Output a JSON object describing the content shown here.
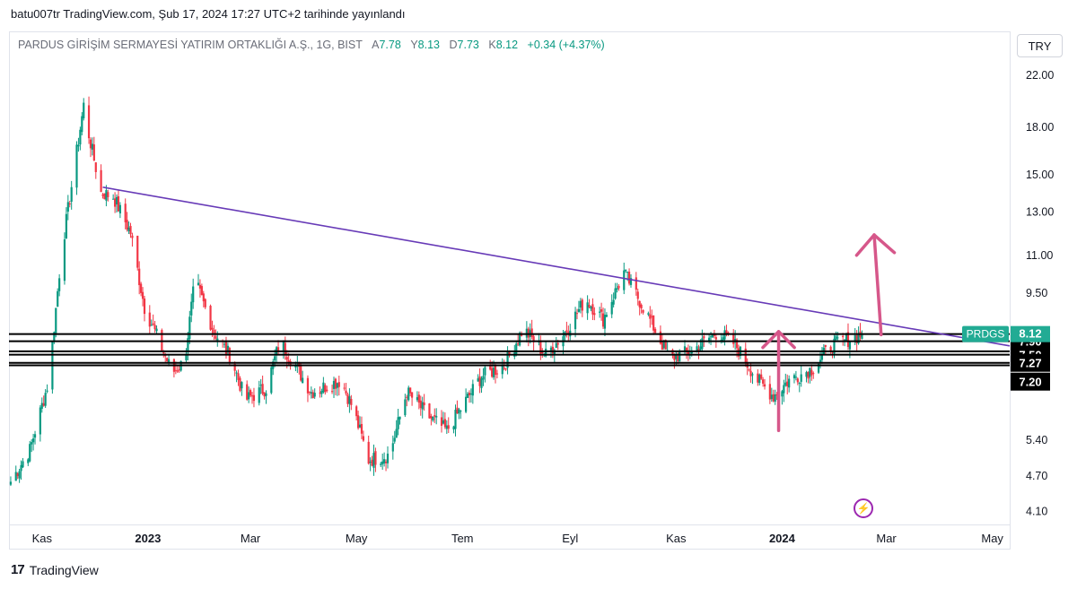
{
  "caption": "batu007tr TradingView.com, Şub 17, 2024 17:27 UTC+2 tarihinde yayınlandı",
  "symbol": {
    "name": "PARDUS GİRİŞİM SERMAYESİ YATIRIM ORTAKLIĞI A.Ş., 1G, BIST",
    "open_label": "A",
    "open": "7.78",
    "high_label": "Y",
    "high": "8.13",
    "low_label": "D",
    "low": "7.73",
    "close_label": "K",
    "close": "8.12",
    "change": "+0.34 (+4.37%)"
  },
  "currency": "TRY",
  "footer": {
    "logo_mark": "17",
    "logo_text": "TradingView"
  },
  "flash_icon": "lightning-icon",
  "colors": {
    "up": "#089981",
    "down": "#f23645",
    "trendline": "#673ab7",
    "arrow": "#d6578a",
    "level": "#000000",
    "price_tag": "#22ab94"
  },
  "chart_data": {
    "type": "candlestick",
    "y_scale": "log",
    "ylim": [
      3.9,
      23.5
    ],
    "y_ticks": [
      22.0,
      18.0,
      15.0,
      13.0,
      11.0,
      9.5,
      5.4,
      4.7,
      4.1
    ],
    "y_tick_labels": [
      "22.00",
      "18.00",
      "15.00",
      "13.00",
      "11.00",
      "9.50",
      "5.40",
      "4.70",
      "4.10"
    ],
    "x_ticks": [
      {
        "label": "Kas",
        "date": "2022-11-01",
        "bold": false
      },
      {
        "label": "2023",
        "date": "2023-01-01",
        "bold": true
      },
      {
        "label": "Mar",
        "date": "2023-03-01",
        "bold": false
      },
      {
        "label": "May",
        "date": "2023-05-01",
        "bold": false
      },
      {
        "label": "Tem",
        "date": "2023-07-01",
        "bold": false
      },
      {
        "label": "Eyl",
        "date": "2023-09-01",
        "bold": false
      },
      {
        "label": "Kas",
        "date": "2023-11-01",
        "bold": false
      },
      {
        "label": "2024",
        "date": "2024-01-01",
        "bold": true
      },
      {
        "label": "Mar",
        "date": "2024-03-01",
        "bold": false
      },
      {
        "label": "May",
        "date": "2024-05-01",
        "bold": false
      }
    ],
    "x_range": [
      "2022-10-13",
      "2024-05-11"
    ],
    "close_path": [
      [
        "2022-10-14",
        4.6
      ],
      [
        "2022-10-25",
        5.2
      ],
      [
        "2022-11-05",
        6.8
      ],
      [
        "2022-11-12",
        11.0
      ],
      [
        "2022-11-19",
        15.0
      ],
      [
        "2022-11-25",
        19.6
      ],
      [
        "2022-11-28",
        17.5
      ],
      [
        "2022-12-05",
        14.0
      ],
      [
        "2022-12-12",
        13.8
      ],
      [
        "2022-12-22",
        12.0
      ],
      [
        "2022-12-30",
        9.0
      ],
      [
        "2023-01-05",
        8.2
      ],
      [
        "2023-01-15",
        7.0
      ],
      [
        "2023-01-22",
        7.3
      ],
      [
        "2023-01-28",
        10.0
      ],
      [
        "2023-02-08",
        8.2
      ],
      [
        "2023-02-18",
        7.4
      ],
      [
        "2023-02-26",
        6.3
      ],
      [
        "2023-03-10",
        6.6
      ],
      [
        "2023-03-18",
        7.9
      ],
      [
        "2023-04-05",
        6.5
      ],
      [
        "2023-04-22",
        6.8
      ],
      [
        "2023-04-29",
        6.1
      ],
      [
        "2023-05-08",
        5.0
      ],
      [
        "2023-05-20",
        5.1
      ],
      [
        "2023-05-30",
        6.5
      ],
      [
        "2023-06-12",
        5.9
      ],
      [
        "2023-06-22",
        5.6
      ],
      [
        "2023-07-12",
        6.9
      ],
      [
        "2023-07-25",
        7.2
      ],
      [
        "2023-08-05",
        8.3
      ],
      [
        "2023-08-18",
        7.5
      ],
      [
        "2023-08-28",
        8.1
      ],
      [
        "2023-09-10",
        9.3
      ],
      [
        "2023-09-20",
        8.6
      ],
      [
        "2023-10-02",
        10.3
      ],
      [
        "2023-10-15",
        8.8
      ],
      [
        "2023-10-28",
        7.4
      ],
      [
        "2023-11-10",
        7.6
      ],
      [
        "2023-11-25",
        8.2
      ],
      [
        "2023-12-05",
        7.8
      ],
      [
        "2023-12-18",
        6.8
      ],
      [
        "2023-12-27",
        6.4
      ],
      [
        "2024-01-05",
        6.8
      ],
      [
        "2024-01-18",
        7.1
      ],
      [
        "2024-01-30",
        7.8
      ],
      [
        "2024-02-17",
        8.12
      ]
    ],
    "trendline": {
      "from": [
        "2022-12-06",
        14.3
      ],
      "to": [
        "2024-05-11",
        7.76
      ]
    },
    "levels": [
      {
        "value": 7.9,
        "label": "7.90"
      },
      {
        "value": 7.5,
        "label": "7.50"
      },
      {
        "value": 7.27,
        "label": "7.27"
      },
      {
        "value": 7.2,
        "label": "7.20"
      }
    ],
    "extra_hlines": [
      8.12,
      7.6
    ],
    "last_price": {
      "value": 8.12,
      "label": "8.12",
      "symbol": "PRDGS"
    },
    "arrows": [
      {
        "tail": [
          "2023-12-30",
          5.6
        ],
        "head": [
          "2023-12-30",
          8.2
        ],
        "head_size": "small"
      },
      {
        "tail": [
          "2024-02-27",
          8.1
        ],
        "head": [
          "2024-02-23",
          11.9
        ],
        "head_size": "large"
      }
    ]
  }
}
